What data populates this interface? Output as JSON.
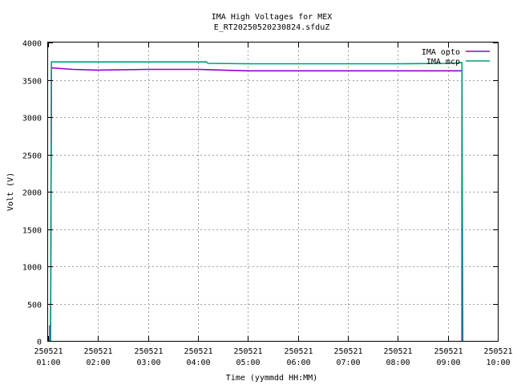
{
  "chart_data": {
    "type": "line",
    "title": "IMA High Voltages for MEX",
    "subtitle": "E_RT20250520230824.sfduZ",
    "xlabel": "Time (yymmdd HH:MM)",
    "ylabel": "Volt (V)",
    "xlim": [
      "01:00",
      "10:00"
    ],
    "ylim": [
      0,
      4000
    ],
    "grid": true,
    "legend_position": "top-right",
    "x_ticks": [
      {
        "date": "250521",
        "time": "01:00"
      },
      {
        "date": "250521",
        "time": "02:00"
      },
      {
        "date": "250521",
        "time": "03:00"
      },
      {
        "date": "250521",
        "time": "04:00"
      },
      {
        "date": "250521",
        "time": "05:00"
      },
      {
        "date": "250521",
        "time": "06:00"
      },
      {
        "date": "250521",
        "time": "07:00"
      },
      {
        "date": "250521",
        "time": "08:00"
      },
      {
        "date": "250521",
        "time": "09:00"
      },
      {
        "date": "250521",
        "time": "10:00"
      }
    ],
    "y_ticks": [
      "0",
      "500",
      "1000",
      "1500",
      "2000",
      "2500",
      "3000",
      "3500",
      "4000"
    ],
    "series": [
      {
        "name": "IMA opto",
        "color": "#9400d3",
        "points": [
          [
            "01:02",
            0
          ],
          [
            "01:02",
            200
          ],
          [
            "01:03",
            200
          ],
          [
            "01:04",
            3660
          ],
          [
            "01:30",
            3640
          ],
          [
            "02:00",
            3630
          ],
          [
            "03:00",
            3640
          ],
          [
            "04:00",
            3640
          ],
          [
            "04:30",
            3630
          ],
          [
            "05:00",
            3620
          ],
          [
            "06:00",
            3620
          ],
          [
            "07:00",
            3620
          ],
          [
            "08:00",
            3620
          ],
          [
            "09:00",
            3620
          ],
          [
            "09:17",
            3620
          ],
          [
            "09:17",
            0
          ]
        ]
      },
      {
        "name": "IMA mcp",
        "color": "#009e73",
        "points": [
          [
            "01:03",
            0
          ],
          [
            "01:04",
            3740
          ],
          [
            "02:00",
            3740
          ],
          [
            "03:00",
            3740
          ],
          [
            "04:00",
            3740
          ],
          [
            "04:10",
            3740
          ],
          [
            "04:12",
            3720
          ],
          [
            "05:00",
            3715
          ],
          [
            "06:00",
            3715
          ],
          [
            "07:00",
            3715
          ],
          [
            "08:00",
            3715
          ],
          [
            "09:00",
            3720
          ],
          [
            "09:17",
            3730
          ],
          [
            "09:18",
            0
          ]
        ]
      }
    ]
  }
}
